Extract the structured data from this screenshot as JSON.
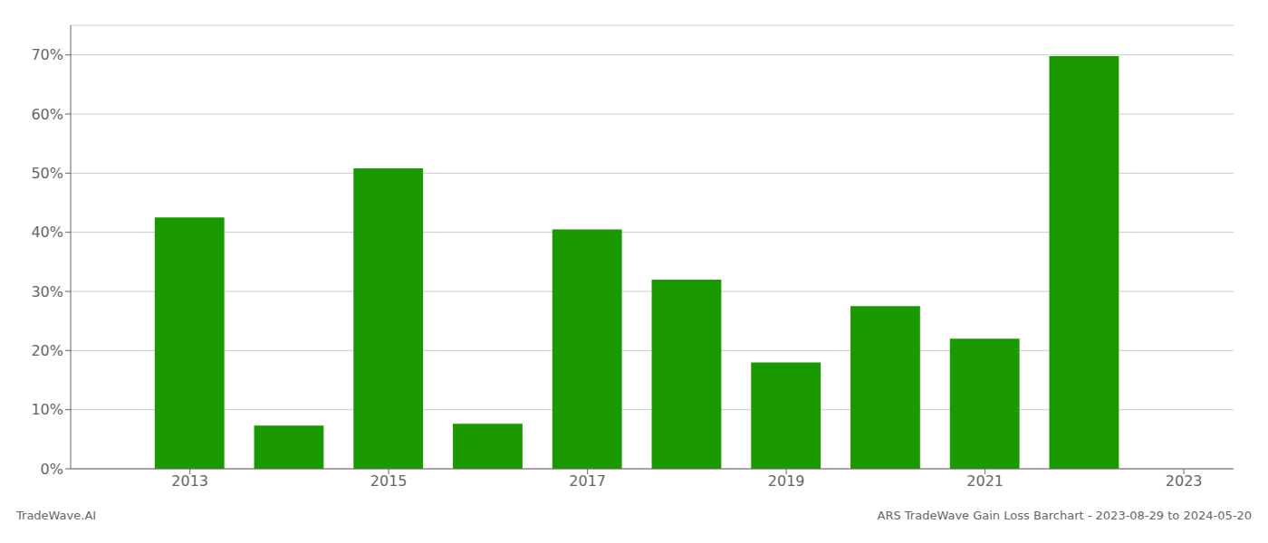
{
  "chart_data": {
    "type": "bar",
    "x": [
      2013,
      2014,
      2015,
      2016,
      2017,
      2018,
      2019,
      2020,
      2021,
      2022
    ],
    "values": [
      0.425,
      0.073,
      0.508,
      0.076,
      0.405,
      0.32,
      0.18,
      0.275,
      0.22,
      0.698
    ],
    "color": "#1a9a00",
    "xlim": [
      2011.8,
      2023.5
    ],
    "xticks": [
      2013,
      2015,
      2017,
      2019,
      2021,
      2023
    ],
    "ylim": [
      0,
      0.75
    ],
    "yticks": [
      {
        "value": 0,
        "label": "0%"
      },
      {
        "value": 0.1,
        "label": "10%"
      },
      {
        "value": 0.2,
        "label": "20%"
      },
      {
        "value": 0.3,
        "label": "30%"
      },
      {
        "value": 0.4,
        "label": "40%"
      },
      {
        "value": 0.5,
        "label": "50%"
      },
      {
        "value": 0.6,
        "label": "60%"
      },
      {
        "value": 0.7,
        "label": "70%"
      }
    ],
    "grid": true,
    "annotations": [
      "TradeWave.AI",
      "ARS TradeWave Gain Loss Barchart - 2023-08-29 to 2024-05-20"
    ]
  }
}
